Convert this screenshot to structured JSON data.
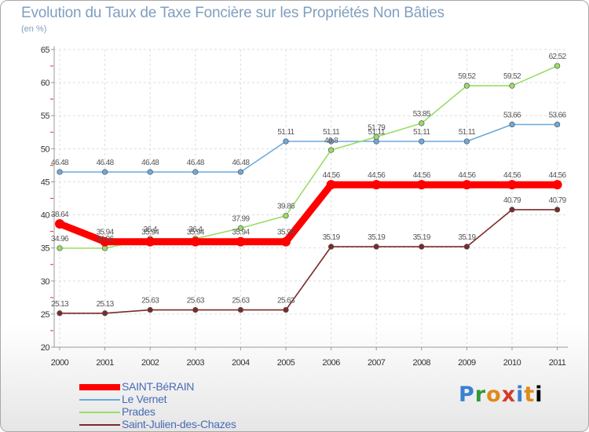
{
  "chart_data": {
    "type": "line",
    "title": "Evolution du Taux de Taxe Foncière sur les Propriétés Non Bâties",
    "unit_label": "(en %)",
    "xlabel": "",
    "ylabel": "",
    "ylim": [
      20,
      65
    ],
    "yticks": [
      "20",
      "25",
      "30",
      "35",
      "40",
      "45",
      "50",
      "55",
      "60",
      "65"
    ],
    "categories": [
      "2000",
      "2001",
      "2002",
      "2003",
      "2004",
      "2005",
      "2006",
      "2007",
      "2008",
      "2009",
      "2010",
      "2011"
    ],
    "series": [
      {
        "name": "SAINT-BéRAIN",
        "color": "#ff0000",
        "values": [
          38.64,
          35.94,
          35.94,
          35.94,
          35.94,
          35.94,
          44.56,
          44.56,
          44.56,
          44.56,
          44.56,
          44.56
        ],
        "labels": [
          "38.64",
          "35.94",
          "35.94",
          "35.94",
          "35.94",
          "35.94",
          "44.56",
          "44.56",
          "44.56",
          "44.56",
          "44.56",
          "44.56"
        ]
      },
      {
        "name": "Le Vernet",
        "color": "#6fa8dc",
        "values": [
          46.48,
          46.48,
          46.48,
          46.48,
          46.48,
          51.11,
          51.11,
          51.11,
          51.11,
          51.11,
          53.66,
          53.66
        ],
        "labels": [
          "46.48",
          "46.48",
          "46.48",
          "46.48",
          "46.48",
          "51.11",
          "51.11",
          "51.11",
          "51.11",
          "51.11",
          "53.66",
          "53.66"
        ]
      },
      {
        "name": "Prades",
        "color": "#99dd66",
        "values": [
          34.96,
          34.96,
          36.4,
          36.4,
          37.99,
          39.86,
          49.8,
          51.79,
          53.85,
          59.52,
          59.52,
          62.52
        ],
        "labels": [
          "34.96",
          "34.96",
          "36.4",
          "36.4",
          "37.99",
          "39.86",
          "49.8",
          "51.79",
          "53.85",
          "59.52",
          "59.52",
          "62.52"
        ]
      },
      {
        "name": "Saint-Julien-des-Chazes",
        "color": "#7a2a2a",
        "values": [
          25.13,
          25.13,
          25.63,
          25.63,
          25.63,
          25.63,
          35.19,
          35.19,
          35.19,
          35.19,
          40.79,
          40.79
        ],
        "labels": [
          "25.13",
          "25.13",
          "25.63",
          "25.63",
          "25.63",
          "25.63",
          "35.19",
          "35.19",
          "35.19",
          "35.19",
          "40.79",
          "40.79"
        ]
      }
    ],
    "legend_position": "bottom-left"
  },
  "brand": {
    "letters": [
      "P",
      "r",
      "o",
      "x",
      "i",
      "t",
      "i"
    ]
  }
}
